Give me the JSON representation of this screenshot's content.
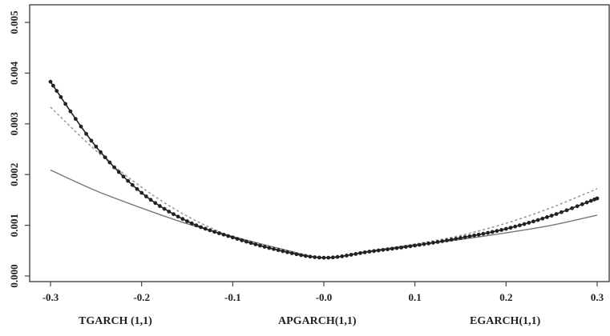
{
  "chart_data": {
    "type": "line",
    "title": "",
    "xlabel": "",
    "ylabel": "",
    "xlim": [
      -0.3,
      0.3
    ],
    "ylim": [
      0.0,
      0.005
    ],
    "x_ticks": [
      -0.3,
      -0.2,
      -0.1,
      0.0,
      0.1,
      0.2,
      0.3
    ],
    "x_tick_labels": [
      "-0.3",
      "-0.2",
      "-0.1",
      "-0.0",
      "0.1",
      "0.2",
      "0.3"
    ],
    "y_ticks": [
      0.0,
      0.001,
      0.002,
      0.003,
      0.004,
      0.005
    ],
    "y_tick_labels": [
      "0.000",
      "0.001",
      "0.002",
      "0.003",
      "0.004",
      "0.005"
    ],
    "grid": false,
    "legend_position": "bottom",
    "x": [
      -0.3,
      -0.25,
      -0.2,
      -0.15,
      -0.1,
      -0.05,
      0.0,
      0.05,
      0.1,
      0.15,
      0.2,
      0.25,
      0.3
    ],
    "series": [
      {
        "name": "TGARCH (1,1)",
        "style": "dashed",
        "color": "#9a9a9a",
        "values": [
          0.00333,
          0.00247,
          0.00175,
          0.00118,
          0.00077,
          0.00051,
          0.00036,
          0.00049,
          0.00063,
          0.0008,
          0.00104,
          0.00135,
          0.00172
        ]
      },
      {
        "name": "APGARCH(1,1)",
        "style": "solid",
        "color": "#777777",
        "values": [
          0.00209,
          0.00168,
          0.00134,
          0.00103,
          0.00078,
          0.00055,
          0.00036,
          0.00049,
          0.00061,
          0.00072,
          0.00085,
          0.001,
          0.0012
        ]
      },
      {
        "name": "EGARCH(1,1)",
        "style": "line-markers",
        "color": "#222222",
        "values": [
          0.00383,
          0.00255,
          0.00164,
          0.00108,
          0.00076,
          0.00051,
          0.00036,
          0.00048,
          0.0006,
          0.00075,
          0.00093,
          0.00119,
          0.00153
        ]
      }
    ]
  }
}
